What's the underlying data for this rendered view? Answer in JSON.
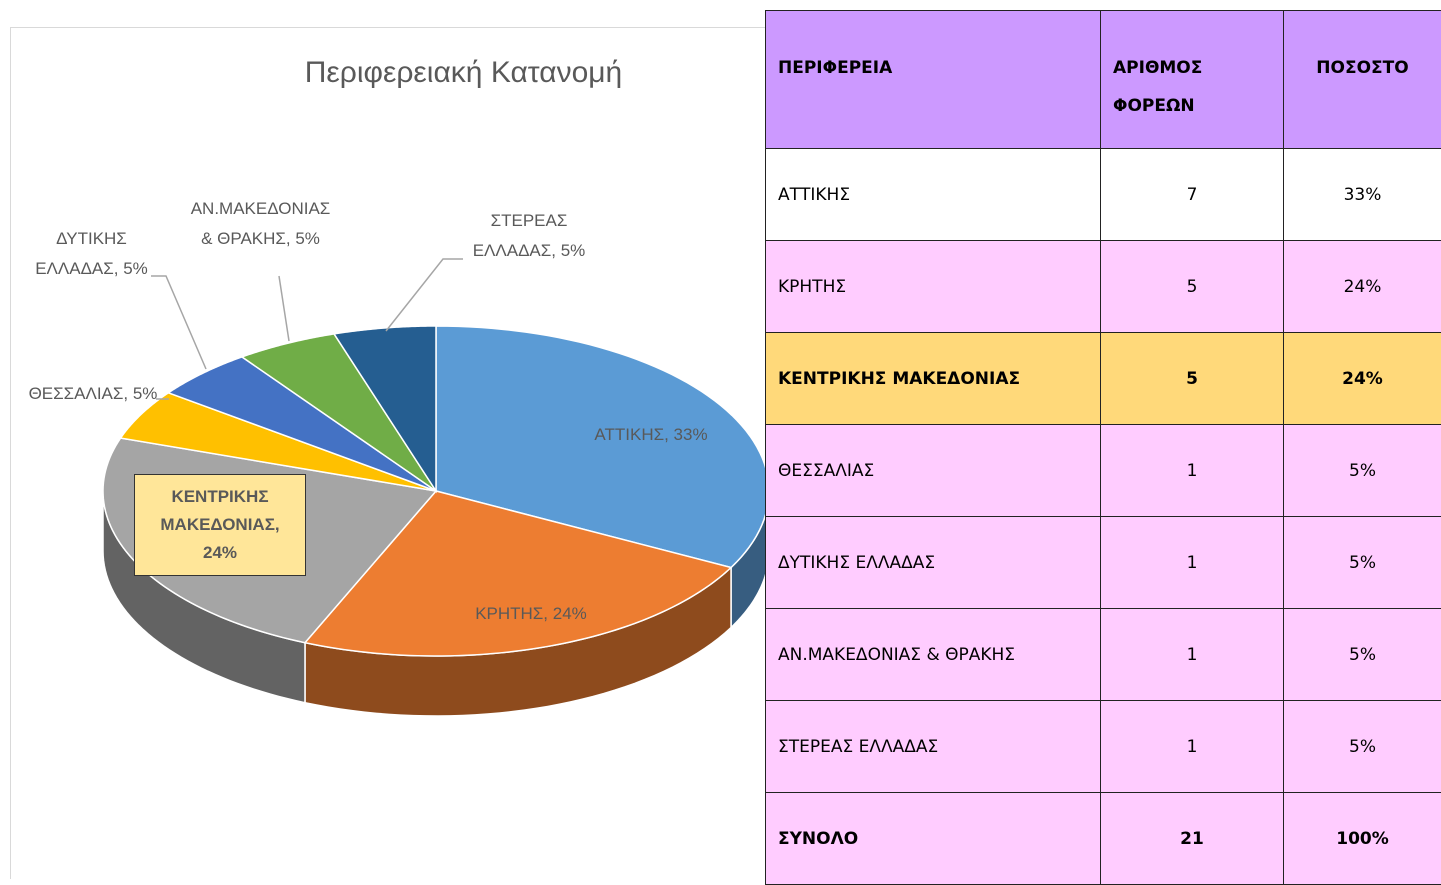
{
  "chart_data": {
    "type": "pie3d",
    "title": "Περιφερειακή Κατανομή",
    "categories": [
      "ΑΤΤΙΚΗΣ",
      "ΚΡΗΤΗΣ",
      "ΚΕΝΤΡΙΚΗΣ ΜΑΚΕΔΟΝΙΑΣ",
      "ΘΕΣΣΑΛΙΑΣ",
      "ΔΥΤΙΚΗΣ ΕΛΛΑΔΑΣ",
      "ΑΝ.ΜΑΚΕΔΟΝΙΑΣ & ΘΡΑΚΗΣ",
      "ΣΤΕΡΕΑΣ ΕΛΛΑΔΑΣ"
    ],
    "values": [
      33,
      24,
      24,
      5,
      5,
      5,
      5
    ],
    "value_labels": [
      "ΑΤΤΙΚΗΣ, 33%",
      "ΚΡΗΤΗΣ, 24%",
      "ΚΕΝΤΡΙΚΗΣ ΜΑΚΕΔΟΝΙΑΣ, 24%",
      "ΘΕΣΣΑΛΙΑΣ, 5%",
      "ΔΥΤΙΚΗΣ ΕΛΛΑΔΑΣ, 5%",
      "ΑΝ.ΜΑΚΕΔΟΝΙΑΣ & ΘΡΑΚΗΣ, 5%",
      "ΣΤΕΡΕΑΣ ΕΛΛΑΔΑΣ, 5%"
    ],
    "colors": [
      "#5b9bd5",
      "#ed7d31",
      "#a5a5a5",
      "#ffc000",
      "#4472c4",
      "#70ad47",
      "#255e91"
    ]
  },
  "table": {
    "header": [
      "ΠΕΡΙΦΕΡΕΙΑ",
      "ΑΡΙΘΜΟΣ ΦΟΡΕΩΝ",
      "ΠΟΣΟΣΤΟ"
    ],
    "rows": [
      [
        "ΑΤΤΙΚΗΣ",
        "7",
        "33%"
      ],
      [
        "ΚΡΗΤΗΣ",
        "5",
        "24%"
      ],
      [
        "ΚΕΝΤΡΙΚΗΣ ΜΑΚΕΔΟΝΙΑΣ",
        "5",
        "24%"
      ],
      [
        "ΘΕΣΣΑΛΙΑΣ",
        "1",
        "5%"
      ],
      [
        "ΔΥΤΙΚΗΣ ΕΛΛΑΔΑΣ",
        "1",
        "5%"
      ],
      [
        "ΑΝ.ΜΑΚΕΔΟΝΙΑΣ & ΘΡΑΚΗΣ",
        "1",
        "5%"
      ],
      [
        "ΣΤΕΡΕΑΣ ΕΛΛΑΔΑΣ",
        "1",
        "5%"
      ]
    ],
    "total": [
      "ΣΥΝΟΛΟ",
      "21",
      "100%"
    ]
  }
}
